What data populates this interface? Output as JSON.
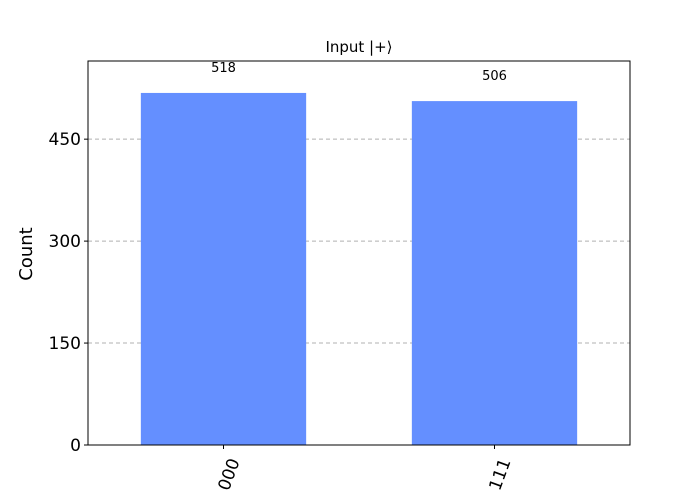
{
  "chart_data": {
    "type": "bar",
    "title": "Input |+⟩",
    "xlabel": "",
    "ylabel": "Count",
    "categories": [
      "000",
      "111"
    ],
    "values": [
      518,
      506
    ],
    "data_labels": [
      "518",
      "506"
    ],
    "ylim": [
      0,
      565
    ],
    "yticks": [
      0,
      150,
      300,
      450
    ],
    "ytick_labels": [
      "0",
      "150",
      "300",
      "450"
    ],
    "xtick_rotation_deg": 70,
    "grid": "horizontal-dashed",
    "legend": "none",
    "bar_color": "#648fff",
    "grid_color": "#b0b0b0"
  }
}
